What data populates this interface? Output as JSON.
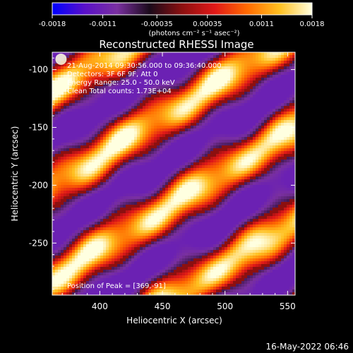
{
  "chart_data": {
    "type": "heatmap",
    "title": "Reconstructed RHESSI Image",
    "xlabel": "Heliocentric X (arcsec)",
    "ylabel": "Heliocentric Y (arcsec)",
    "xlim": [
      362,
      556
    ],
    "ylim": [
      -295,
      -85
    ],
    "x_ticks": [
      400,
      450,
      500,
      550
    ],
    "y_ticks": [
      -100,
      -150,
      -200,
      -250
    ],
    "grid": false,
    "colorbar": {
      "range": [
        -0.0018,
        0.0018
      ],
      "ticks": [
        -0.0018,
        -0.0011,
        -0.00035,
        0.00035,
        0.0011,
        0.0018
      ],
      "tick_labels": [
        "-0.0018",
        "-0.0011",
        "-0.00035",
        "0.00035",
        "0.0011",
        "0.0018"
      ],
      "unit_label": "(photons cm⁻² s⁻¹ asec⁻²)",
      "colors": [
        "#0000ff",
        "#5a10c8",
        "#7a30a0",
        "#1a0a1a",
        "#8c1010",
        "#e01818",
        "#ff6a00",
        "#ffc020",
        "#ffffe0"
      ]
    },
    "annotations": [
      "21-Aug-2014 09:30:56.000 to 09:36:40.000",
      "Detectors: 3F 6F 9F, Att 0",
      "Energy Range: 25.0 - 50.0 keV",
      "Clean      Total counts: 1.73E+04"
    ],
    "peak_label": "Position of Peak = [369,-91]",
    "peak": [
      369,
      -91
    ],
    "pattern": "diagonal bright ridges on purple background, stripes rising to the upper right"
  },
  "timestamp": "16-May-2022 06:46"
}
